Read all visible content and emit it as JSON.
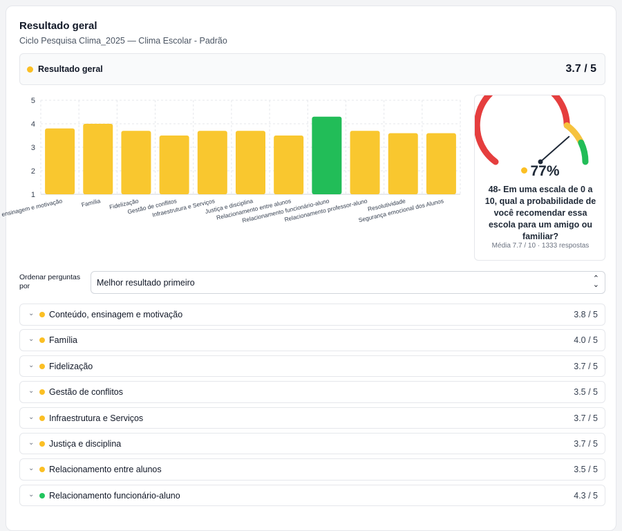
{
  "header": {
    "title": "Resultado geral",
    "subtitle": "Ciclo Pesquisa Clima_2025 — Clima Escolar - Padrão"
  },
  "overall": {
    "label": "Resultado geral",
    "value": "3.7 / 5",
    "dot_color": "#fbbf24"
  },
  "colors": {
    "yellow": "#f9c72f",
    "green": "#22bd58",
    "gauge_red": "#e53e3e",
    "gauge_yellow": "#f6c23e",
    "gauge_green": "#22bd58"
  },
  "chart_data": {
    "type": "bar",
    "categories": [
      "Conteúdo, ensinagem e motivação",
      "Família",
      "Fidelização",
      "Gestão de conflitos",
      "Infraestrutura e Serviços",
      "Justiça e disciplina",
      "Relacionamento entre alunos",
      "Relacionamento funcionário-aluno",
      "Relacionamento professor-aluno",
      "Resolutividade",
      "Segurança emocional dos Alunos"
    ],
    "values": [
      3.8,
      4.0,
      3.7,
      3.5,
      3.7,
      3.7,
      3.5,
      4.3,
      3.7,
      3.6,
      3.6
    ],
    "bar_colors": [
      "#f9c72f",
      "#f9c72f",
      "#f9c72f",
      "#f9c72f",
      "#f9c72f",
      "#f9c72f",
      "#f9c72f",
      "#22bd58",
      "#f9c72f",
      "#f9c72f",
      "#f9c72f"
    ],
    "yticks": [
      "1",
      "2",
      "3",
      "4",
      "5"
    ],
    "ylim": [
      1,
      5
    ],
    "grid": true
  },
  "nps": {
    "percent": "77%",
    "percent_value": 0.77,
    "question": "48- Em uma escala de 0 a 10, qual a probabilidade de você recomendar essa escola para um amigo ou familiar?",
    "meta": "Média 7.7 / 10 · 1333 respostas"
  },
  "sort": {
    "label": "Ordenar perguntas por",
    "value": "Melhor resultado primeiro"
  },
  "categories": [
    {
      "name": "Conteúdo, ensinagem e motivação",
      "score": "3.8 / 5",
      "color": "#fbbf24"
    },
    {
      "name": "Família",
      "score": "4.0 / 5",
      "color": "#fbbf24"
    },
    {
      "name": "Fidelização",
      "score": "3.7 / 5",
      "color": "#fbbf24"
    },
    {
      "name": "Gestão de conflitos",
      "score": "3.5 / 5",
      "color": "#fbbf24"
    },
    {
      "name": "Infraestrutura e Serviços",
      "score": "3.7 / 5",
      "color": "#fbbf24"
    },
    {
      "name": "Justiça e disciplina",
      "score": "3.7 / 5",
      "color": "#fbbf24"
    },
    {
      "name": "Relacionamento entre alunos",
      "score": "3.5 / 5",
      "color": "#fbbf24"
    },
    {
      "name": "Relacionamento funcionário-aluno",
      "score": "4.3 / 5",
      "color": "#22c55e"
    }
  ]
}
